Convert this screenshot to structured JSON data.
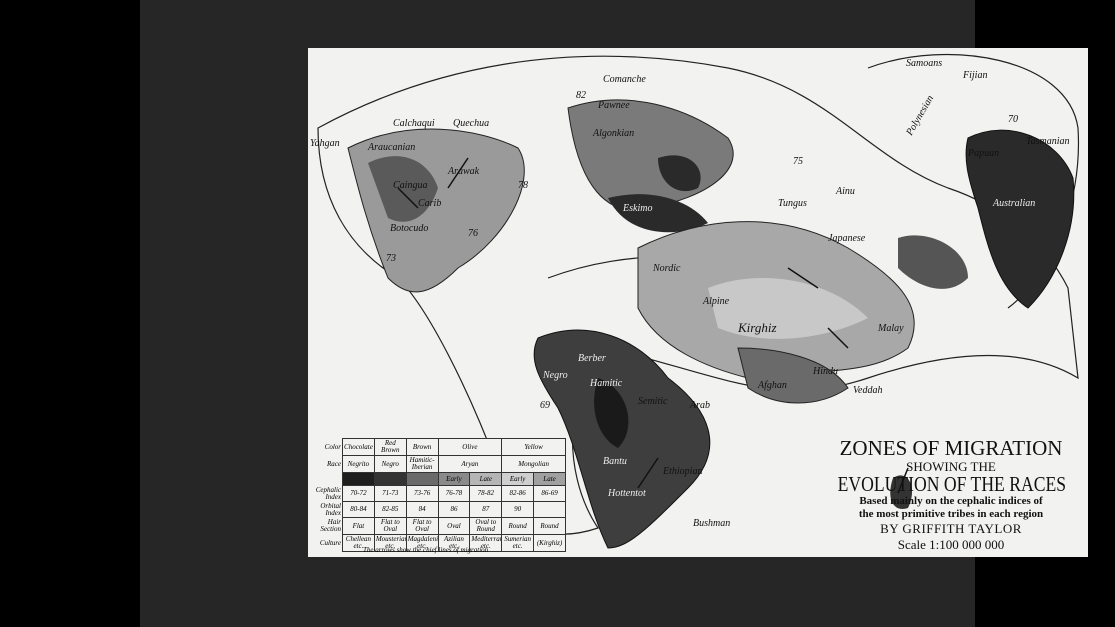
{
  "title": {
    "line1": "ZONES OF MIGRATION",
    "line2": "SHOWING THE",
    "line3": "EVOLUTION OF THE RACES",
    "subtitle1": "Based mainly on the cephalic indices of",
    "subtitle2": "the most primitive tribes in each region",
    "author": "BY GRIFFITH TAYLOR",
    "scale": "Scale 1:100 000 000"
  },
  "legend": {
    "row_labels": [
      "Color",
      "Race",
      "",
      "Cephalic Index",
      "Orbital Index",
      "Hair Section",
      "Culture"
    ],
    "colors": [
      "Chocolate",
      "Red Brown",
      "Brown",
      "Olive",
      "Yellow"
    ],
    "races": [
      "Negrito",
      "Negro",
      "Hamitic-Iberian",
      "Aryan",
      "Mongolian"
    ],
    "phases": [
      "Early",
      "Late",
      "Early",
      "Late"
    ],
    "swatch_colors": [
      "#1e1e1e",
      "#333333",
      "#6a6a6a",
      "#8a8a8a",
      "#b5b5b5",
      "#cfcfcf",
      "#a0a0a0"
    ],
    "cephalic": [
      "70-72",
      "71-73",
      "73-76",
      "76-78",
      "78-82",
      "82-86",
      "86-69"
    ],
    "orbital": [
      "80-84",
      "82-85",
      "84",
      "86",
      "87",
      "90",
      ""
    ],
    "hair": [
      "Flat",
      "Flat to Oval",
      "Flat to Oval",
      "Oval",
      "Oval to Round",
      "Round",
      "Round"
    ],
    "culture": [
      "Chellean etc.",
      "Mousterian etc.",
      "Magdalenian etc.",
      "Azilian etc.",
      "Mediterranean etc.",
      "Sumerian etc.",
      "(Kirghiz)"
    ],
    "caption": "The arrows show the chief lines of migration"
  },
  "map_labels": [
    "Yahgan",
    "Araucanian",
    "Calchaqui",
    "Quechua",
    "Caingua",
    "Carib",
    "Arawak",
    "Botocudo",
    "Comanche",
    "Pawnee",
    "Algonkian",
    "Eskimo",
    "Nordic",
    "Kirghiz",
    "Tungus",
    "Alpine",
    "Berber",
    "Hamitic",
    "Semitic",
    "Arab",
    "Afghan",
    "Hindu",
    "Veddah",
    "Negro",
    "Bantu",
    "Ethiopian",
    "Hottentot",
    "Bushman",
    "Samoans",
    "Fijian",
    "Polynesian",
    "Australian",
    "Tasmanian",
    "Malay",
    "Japanese",
    "Ainu",
    "Papuan",
    "73",
    "76",
    "78",
    "82",
    "75",
    "70",
    "69"
  ]
}
